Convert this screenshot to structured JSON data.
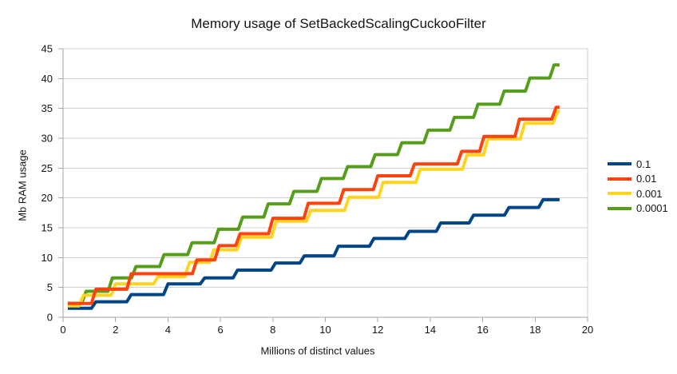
{
  "chart_data": {
    "type": "line",
    "title": "Memory usage of SetBackedScalingCuckooFilter",
    "xlabel": "Millions of distinct values",
    "ylabel": "Mb RAM usage",
    "xlim": [
      0,
      20
    ],
    "ylim": [
      0,
      45
    ],
    "x_ticks": [
      0,
      2,
      4,
      6,
      8,
      10,
      12,
      14,
      16,
      18,
      20
    ],
    "y_ticks": [
      0,
      5,
      10,
      15,
      20,
      25,
      30,
      35,
      40,
      45
    ],
    "grid": "horizontal-only",
    "legend_position": "right",
    "line_style": "stepped (flat levels with short ramps at each capacity scaling event)",
    "x_start": 0.18,
    "x_end": 18.93,
    "series": [
      {
        "name": "0.1",
        "color": "#004586",
        "levels": [
          [
            0.18,
            1.5
          ],
          [
            1.25,
            2.6
          ],
          [
            2.6,
            3.8
          ],
          [
            4.0,
            5.6
          ],
          [
            5.4,
            6.6
          ],
          [
            6.65,
            7.9
          ],
          [
            8.1,
            9.1
          ],
          [
            9.2,
            10.3
          ],
          [
            10.5,
            11.9
          ],
          [
            11.85,
            13.2
          ],
          [
            13.2,
            14.4
          ],
          [
            14.4,
            15.8
          ],
          [
            15.65,
            17.1
          ],
          [
            17.0,
            18.4
          ],
          [
            18.3,
            19.7
          ]
        ]
      },
      {
        "name": "0.01",
        "color": "#ff420e",
        "levels": [
          [
            0.18,
            2.3
          ],
          [
            1.25,
            4.7
          ],
          [
            2.6,
            7.3
          ],
          [
            5.1,
            9.6
          ],
          [
            5.95,
            12.0
          ],
          [
            6.75,
            14.0
          ],
          [
            8.0,
            16.6
          ],
          [
            9.35,
            19.1
          ],
          [
            10.7,
            21.4
          ],
          [
            12.0,
            23.7
          ],
          [
            13.4,
            25.7
          ],
          [
            15.2,
            27.8
          ],
          [
            16.05,
            30.3
          ],
          [
            17.4,
            33.2
          ],
          [
            18.8,
            35.2
          ]
        ]
      },
      {
        "name": "0.001",
        "color": "#ffd320",
        "levels": [
          [
            0.18,
            1.9
          ],
          [
            0.78,
            3.7
          ],
          [
            2.0,
            5.6
          ],
          [
            3.62,
            6.8
          ],
          [
            4.82,
            9.2
          ],
          [
            5.75,
            11.3
          ],
          [
            6.8,
            13.4
          ],
          [
            8.12,
            16.1
          ],
          [
            9.45,
            17.9
          ],
          [
            10.9,
            20.1
          ],
          [
            12.2,
            22.6
          ],
          [
            13.62,
            24.8
          ],
          [
            15.4,
            27.2
          ],
          [
            16.2,
            29.9
          ],
          [
            17.6,
            32.5
          ],
          [
            18.85,
            34.5
          ]
        ]
      },
      {
        "name": "0.0001",
        "color": "#579d1c",
        "levels": [
          [
            0.18,
            2.35
          ],
          [
            0.88,
            4.35
          ],
          [
            1.88,
            6.6
          ],
          [
            2.78,
            8.5
          ],
          [
            3.85,
            10.5
          ],
          [
            4.92,
            12.5
          ],
          [
            5.93,
            14.75
          ],
          [
            6.85,
            16.8
          ],
          [
            7.82,
            19.0
          ],
          [
            8.8,
            21.1
          ],
          [
            9.85,
            23.25
          ],
          [
            10.85,
            25.25
          ],
          [
            11.9,
            27.25
          ],
          [
            12.92,
            29.25
          ],
          [
            13.92,
            31.35
          ],
          [
            14.92,
            33.5
          ],
          [
            15.82,
            35.7
          ],
          [
            16.82,
            37.9
          ],
          [
            17.8,
            40.1
          ],
          [
            18.72,
            42.3
          ]
        ]
      }
    ],
    "colors": {
      "gridline": "#d0d0d0",
      "axis": "#a6a6a6",
      "tick_label": "#141414",
      "background": "#ffffff"
    }
  }
}
